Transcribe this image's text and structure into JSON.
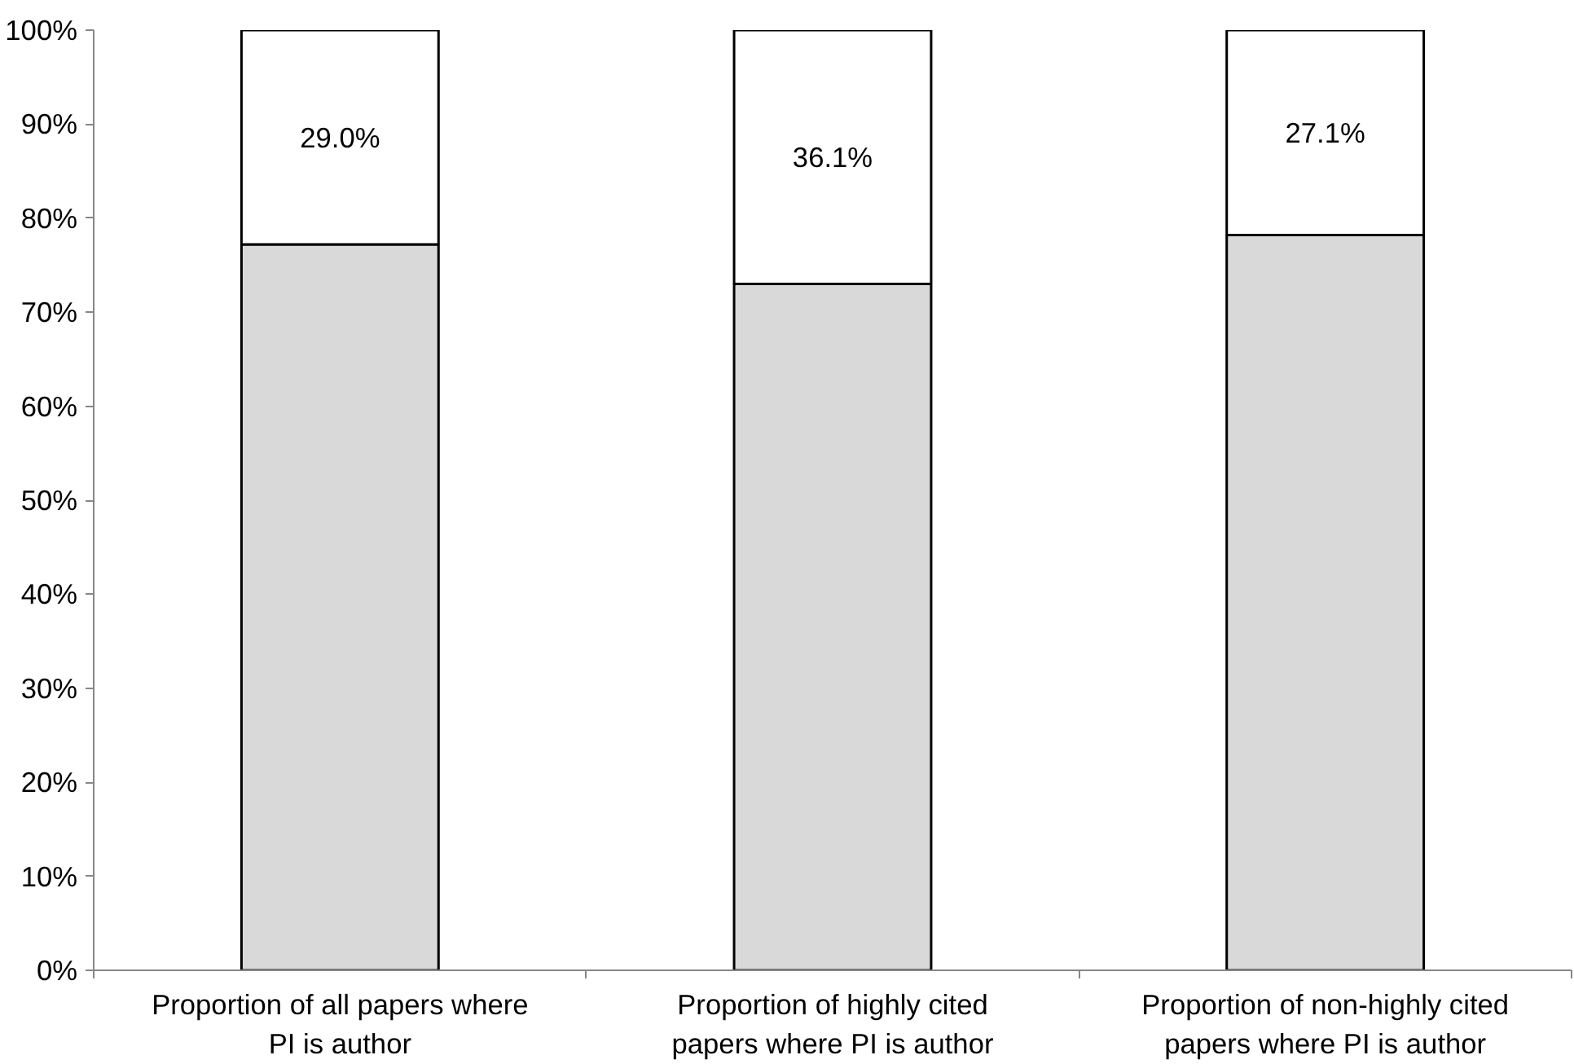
{
  "chart_data": {
    "type": "bar",
    "stacked": true,
    "categories": [
      "Proportion of all papers where PI is author",
      "Proportion of highly cited papers where PI is author",
      "Proportion of non-highly cited papers where PI is author"
    ],
    "series": [
      {
        "color": "#d9d9d9",
        "values": [
          77.2,
          73.0,
          78.2
        ]
      },
      {
        "color": "#ffffff",
        "values": [
          22.8,
          27.0,
          21.8
        ]
      }
    ],
    "ylim": [
      0,
      100
    ],
    "yticks": [
      {
        "value": 0,
        "label": "0%"
      },
      {
        "value": 10,
        "label": "10%"
      },
      {
        "value": 20,
        "label": "20%"
      },
      {
        "value": 30,
        "label": "30%"
      },
      {
        "value": 40,
        "label": "40%"
      },
      {
        "value": 50,
        "label": "50%"
      },
      {
        "value": 60,
        "label": "60%"
      },
      {
        "value": 70,
        "label": "70%"
      },
      {
        "value": 80,
        "label": "80%"
      },
      {
        "value": 90,
        "label": "90%"
      },
      {
        "value": 100,
        "label": "100%"
      }
    ],
    "annotations": [
      "29.0%",
      "36.1%",
      "27.1%"
    ],
    "grid": false
  }
}
